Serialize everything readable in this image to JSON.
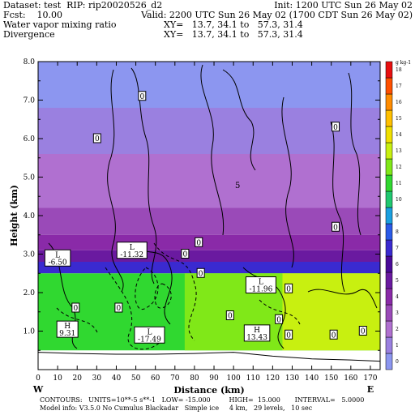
{
  "header": {
    "dataset": "Dataset: test  RIP: rip20020526_d2",
    "init": "Init: 1200 UTC Sun 26 May 02",
    "fcst": "Fcst:    10.00",
    "valid": "Valid: 2200 UTC Sun 26 May 02 (1700 CDT Sun 26 May 02)",
    "field1": "Water vapor mixing ratio",
    "xy1": "XY=   13.7, 34.1 to   57.3, 31.4",
    "field2": "Divergence",
    "xy2": "XY=   13.7, 34.1 to   57.3, 31.4"
  },
  "footer": {
    "line1": "CONTOURS:   UNITS=10**-5 s**-1   LOW= -15.000         HIGH=  15.000       INTERVAL=   5.0000",
    "line2": "Model info: V3.5.0 No Cumulus Blackadar   Simple ice     4 km,   29 levels,   10 sec"
  },
  "chart_data": {
    "type": "heatmap",
    "title": "Water vapor mixing ratio / Divergence",
    "xlabel": "Distance (km)",
    "ylabel": "Height (km)",
    "xlim": [
      0,
      175
    ],
    "ylim": [
      0,
      8
    ],
    "xticks": [
      "0",
      "10",
      "20",
      "30",
      "40",
      "50",
      "60",
      "70",
      "80",
      "90",
      "100",
      "110",
      "120",
      "130",
      "140",
      "150",
      "160",
      "170"
    ],
    "yticks": [
      "1.0",
      "2.0",
      "3.0",
      "4.0",
      "5.0",
      "6.0",
      "7.0",
      "8.0"
    ],
    "x_endpoints": {
      "left": "W",
      "right": "E"
    },
    "colorbar": {
      "unit_label": "g kg-1",
      "levels": [
        "0",
        "1",
        "2",
        "3",
        "4",
        "5",
        "6",
        "7",
        "8",
        "9",
        "10",
        "11",
        "12",
        "13",
        "14",
        "15",
        "16",
        "17",
        "18"
      ],
      "colors": [
        "#8c96f0",
        "#9a80e0",
        "#b070d0",
        "#9a4ab8",
        "#8a2aa8",
        "#6a1aa0",
        "#4a0a98",
        "#3a2ad0",
        "#2a5ae8",
        "#1aa0e0",
        "#20c870",
        "#30d830",
        "#80e818",
        "#c8f010",
        "#f0e000",
        "#ffc000",
        "#ff8c00",
        "#ff5000",
        "#e81010"
      ]
    },
    "moisture_layers": [
      {
        "z_bottom": 6.8,
        "z_top": 8.0,
        "value": 0
      },
      {
        "z_bottom": 5.6,
        "z_top": 6.8,
        "value": 1
      },
      {
        "z_bottom": 4.2,
        "z_top": 5.6,
        "value": 2
      },
      {
        "z_bottom": 3.5,
        "z_top": 4.2,
        "value": 3
      },
      {
        "z_bottom": 3.1,
        "z_top": 3.5,
        "value": 4
      },
      {
        "z_bottom": 2.8,
        "z_top": 3.1,
        "value": 5
      },
      {
        "z_bottom": 2.5,
        "z_top": 2.8,
        "value": 7
      },
      {
        "z_bottom": 0.5,
        "z_top": 2.5,
        "value": 11
      },
      {
        "z_bottom": 0.5,
        "z_top": 2.5,
        "x_from": 75,
        "x_to": 125,
        "value": 12
      },
      {
        "z_bottom": 0.5,
        "z_top": 2.5,
        "x_from": 125,
        "x_to": 175,
        "value": 13
      }
    ],
    "contour_labels": [
      {
        "x": 53,
        "z": 7.1,
        "text": "0"
      },
      {
        "x": 30,
        "z": 6.0,
        "text": "0"
      },
      {
        "x": 152,
        "z": 6.3,
        "text": "0"
      },
      {
        "x": 152,
        "z": 3.7,
        "text": "0"
      },
      {
        "x": 75,
        "z": 3.0,
        "text": "0"
      },
      {
        "x": 82,
        "z": 3.3,
        "text": "0"
      },
      {
        "x": 83,
        "z": 2.5,
        "text": "0"
      },
      {
        "x": 128,
        "z": 2.1,
        "text": "0"
      },
      {
        "x": 19,
        "z": 1.6,
        "text": "0"
      },
      {
        "x": 41,
        "z": 1.6,
        "text": "0"
      },
      {
        "x": 123,
        "z": 1.3,
        "text": "0"
      },
      {
        "x": 128,
        "z": 0.9,
        "text": "0"
      },
      {
        "x": 151,
        "z": 0.9,
        "text": "0"
      },
      {
        "x": 166,
        "z": 1.0,
        "text": "0"
      },
      {
        "x": 98,
        "z": 1.4,
        "text": "0"
      }
    ],
    "extrema": [
      {
        "kind": "L",
        "value": "-6.50",
        "x": 10,
        "z": 2.9
      },
      {
        "kind": "L",
        "value": "-11.32",
        "x": 48,
        "z": 3.1
      },
      {
        "kind": "L",
        "value": "-11.96",
        "x": 114,
        "z": 2.2
      },
      {
        "kind": "L",
        "value": "-17.49",
        "x": 57,
        "z": 0.9
      },
      {
        "kind": "H",
        "value": "9.31",
        "x": 15,
        "z": 1.05
      },
      {
        "kind": "H",
        "value": "13.43",
        "x": 112,
        "z": 0.95
      }
    ],
    "stray_label": "5"
  }
}
